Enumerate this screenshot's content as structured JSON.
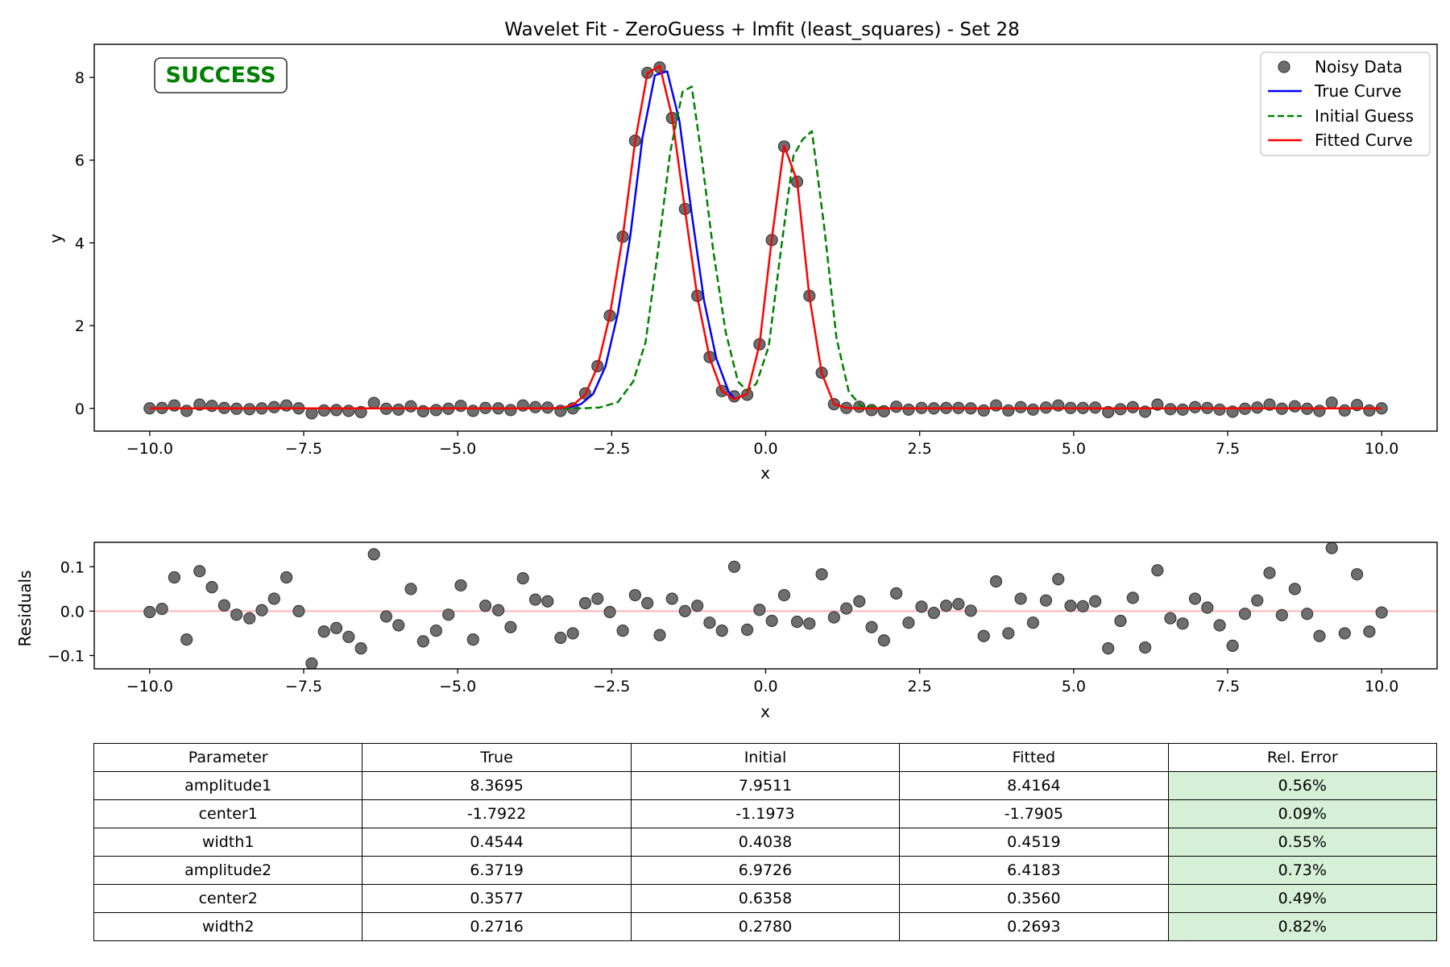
{
  "chart_data": [
    {
      "type": "line",
      "title": "Wavelet Fit - ZeroGuess + lmfit (least_squares) - Set 28",
      "xlabel": "x",
      "ylabel": "y",
      "xlim": [
        -10.9,
        10.9
      ],
      "ylim": [
        -0.55,
        8.8
      ],
      "xticks": [
        -10.0,
        -7.5,
        -5.0,
        -2.5,
        0.0,
        2.5,
        5.0,
        7.5,
        10.0
      ],
      "yticks": [
        0,
        2,
        4,
        6,
        8
      ],
      "grid": false,
      "legend_position": "top-right",
      "status_badge": "SUCCESS",
      "series": [
        {
          "name": "Noisy Data",
          "style": "markers",
          "color": "#555555",
          "x": [
            -10.0,
            -9.8,
            -9.6,
            -9.4,
            -9.19,
            -8.99,
            -8.79,
            -8.59,
            -8.38,
            -8.18,
            -7.98,
            -7.78,
            -7.58,
            -7.37,
            -7.17,
            -6.97,
            -6.77,
            -6.57,
            -6.36,
            -6.16,
            -5.96,
            -5.76,
            -5.56,
            -5.35,
            -5.15,
            -4.95,
            -4.75,
            -4.55,
            -4.34,
            -4.14,
            -3.94,
            -3.74,
            -3.54,
            -3.33,
            -3.13,
            -2.93,
            -2.73,
            -2.53,
            -2.32,
            -2.12,
            -1.92,
            -1.72,
            -1.52,
            -1.31,
            -1.11,
            -0.91,
            -0.71,
            -0.51,
            -0.3,
            -0.1,
            0.1,
            0.3,
            0.51,
            0.71,
            0.91,
            1.11,
            1.31,
            1.52,
            1.72,
            1.92,
            2.12,
            2.32,
            2.53,
            2.73,
            2.93,
            3.13,
            3.33,
            3.54,
            3.74,
            3.94,
            4.14,
            4.34,
            4.55,
            4.75,
            4.95,
            5.15,
            5.35,
            5.56,
            5.76,
            5.96,
            6.16,
            6.36,
            6.57,
            6.77,
            6.97,
            7.17,
            7.37,
            7.58,
            7.78,
            7.98,
            8.18,
            8.38,
            8.59,
            8.79,
            8.99,
            9.19,
            9.4,
            9.6,
            9.8,
            10.0
          ],
          "y": [
            0.0,
            0.01,
            0.07,
            -0.06,
            0.09,
            0.06,
            0.01,
            -0.01,
            -0.02,
            0.0,
            0.03,
            0.07,
            0.0,
            -0.12,
            -0.05,
            -0.04,
            -0.06,
            -0.09,
            0.13,
            -0.01,
            -0.03,
            0.05,
            -0.07,
            -0.04,
            -0.01,
            0.06,
            -0.06,
            0.01,
            0.0,
            -0.04,
            0.07,
            0.03,
            0.02,
            -0.06,
            0.0,
            0.36,
            1.02,
            2.24,
            4.15,
            6.47,
            8.11,
            8.24,
            7.02,
            4.82,
            2.72,
            1.24,
            0.42,
            0.29,
            0.33,
            1.55,
            4.07,
            6.33,
            5.48,
            2.72,
            0.86,
            0.1,
            0.01,
            0.04,
            -0.04,
            -0.07,
            0.04,
            -0.03,
            0.01,
            0.0,
            0.01,
            0.01,
            0.0,
            -0.05,
            0.07,
            -0.05,
            0.03,
            -0.03,
            0.02,
            0.07,
            0.01,
            0.01,
            0.02,
            -0.09,
            -0.02,
            0.03,
            -0.08,
            0.09,
            -0.02,
            -0.03,
            0.03,
            0.01,
            -0.03,
            -0.08,
            -0.01,
            0.02,
            0.09,
            -0.01,
            0.05,
            -0.01,
            -0.06,
            0.14,
            -0.05,
            0.08,
            -0.05,
            0.0
          ]
        },
        {
          "name": "True Curve",
          "style": "solid",
          "color": "#0000ff",
          "x": [
            -3.4,
            -3.2,
            -3.0,
            -2.8,
            -2.6,
            -2.4,
            -2.2,
            -2.0,
            -1.8,
            -1.6,
            -1.4,
            -1.2,
            -1.0,
            -0.8,
            -0.6,
            -0.5
          ],
          "y": [
            0.0,
            0.02,
            0.1,
            0.35,
            1.02,
            2.3,
            4.15,
            6.55,
            8.05,
            8.15,
            6.95,
            4.7,
            2.6,
            1.2,
            0.4,
            0.22
          ]
        },
        {
          "name": "Initial Guess",
          "style": "dashed",
          "color": "#008000",
          "x": [
            -10.0,
            -3.0,
            -2.7,
            -2.4,
            -2.15,
            -1.95,
            -1.75,
            -1.55,
            -1.35,
            -1.2,
            -1.05,
            -0.85,
            -0.65,
            -0.45,
            -0.3,
            -0.15,
            0.05,
            0.25,
            0.45,
            0.6,
            0.75,
            0.95,
            1.15,
            1.35,
            1.55,
            2.0,
            10.0
          ],
          "y": [
            0.0,
            0.0,
            0.02,
            0.15,
            0.65,
            1.6,
            3.8,
            6.2,
            7.65,
            7.78,
            6.2,
            3.8,
            1.85,
            0.65,
            0.42,
            0.6,
            1.5,
            3.85,
            6.1,
            6.5,
            6.7,
            4.4,
            1.7,
            0.4,
            0.06,
            0.0,
            0.0
          ]
        },
        {
          "name": "Fitted Curve",
          "style": "solid",
          "color": "#ff0000",
          "x": [
            -10.0,
            -3.54,
            -3.33,
            -3.13,
            -2.93,
            -2.73,
            -2.53,
            -2.32,
            -2.12,
            -1.92,
            -1.72,
            -1.52,
            -1.31,
            -1.11,
            -0.91,
            -0.71,
            -0.51,
            -0.3,
            -0.1,
            0.1,
            0.3,
            0.51,
            0.71,
            0.91,
            1.11,
            1.31,
            1.52,
            10.0
          ],
          "y": [
            0.0,
            0.0,
            0.01,
            0.08,
            0.33,
            1.0,
            2.25,
            4.15,
            6.45,
            8.1,
            8.28,
            7.05,
            4.8,
            2.7,
            1.22,
            0.42,
            0.22,
            0.35,
            1.55,
            4.1,
            6.35,
            5.5,
            2.7,
            0.85,
            0.1,
            0.01,
            0.0,
            0.0
          ]
        }
      ]
    },
    {
      "type": "scatter",
      "title": "",
      "xlabel": "x",
      "ylabel": "Residuals",
      "xlim": [
        -10.9,
        10.9
      ],
      "ylim": [
        -0.13,
        0.155
      ],
      "xticks": [
        -10.0,
        -7.5,
        -5.0,
        -2.5,
        0.0,
        2.5,
        5.0,
        7.5,
        10.0
      ],
      "yticks": [
        0.1,
        0.0,
        -0.1
      ],
      "ytick_labels": [
        "0.1",
        "0.0",
        "−0.1"
      ],
      "zero_line_color": "#ffb3b3",
      "grid": false,
      "series": [
        {
          "style": "markers",
          "color": "#555555",
          "x": [
            -10.0,
            -9.8,
            -9.6,
            -9.4,
            -9.19,
            -8.99,
            -8.79,
            -8.59,
            -8.38,
            -8.18,
            -7.98,
            -7.78,
            -7.58,
            -7.37,
            -7.17,
            -6.97,
            -6.77,
            -6.57,
            -6.36,
            -6.16,
            -5.96,
            -5.76,
            -5.56,
            -5.35,
            -5.15,
            -4.95,
            -4.75,
            -4.55,
            -4.34,
            -4.14,
            -3.94,
            -3.74,
            -3.54,
            -3.33,
            -3.13,
            -2.93,
            -2.73,
            -2.53,
            -2.32,
            -2.12,
            -1.92,
            -1.72,
            -1.52,
            -1.31,
            -1.11,
            -0.91,
            -0.71,
            -0.51,
            -0.3,
            -0.1,
            0.1,
            0.3,
            0.51,
            0.71,
            0.91,
            1.11,
            1.31,
            1.52,
            1.72,
            1.92,
            2.12,
            2.32,
            2.53,
            2.73,
            2.93,
            3.13,
            3.33,
            3.54,
            3.74,
            3.94,
            4.14,
            4.34,
            4.55,
            4.75,
            4.95,
            5.15,
            5.35,
            5.56,
            5.76,
            5.96,
            6.16,
            6.36,
            6.57,
            6.77,
            6.97,
            7.17,
            7.37,
            7.58,
            7.78,
            7.98,
            8.18,
            8.38,
            8.59,
            8.79,
            8.99,
            9.19,
            9.4,
            9.6,
            9.8,
            10.0
          ],
          "y": [
            -0.002,
            0.005,
            0.076,
            -0.064,
            0.09,
            0.054,
            0.013,
            -0.008,
            -0.016,
            0.002,
            0.028,
            0.076,
            0.0,
            -0.118,
            -0.046,
            -0.038,
            -0.058,
            -0.084,
            0.128,
            -0.012,
            -0.032,
            0.05,
            -0.068,
            -0.044,
            -0.008,
            0.058,
            -0.064,
            0.012,
            0.002,
            -0.036,
            0.074,
            0.026,
            0.022,
            -0.06,
            -0.05,
            0.018,
            0.028,
            -0.002,
            -0.044,
            0.036,
            0.018,
            -0.054,
            0.028,
            0.0,
            0.012,
            -0.026,
            -0.044,
            0.1,
            -0.042,
            0.003,
            -0.022,
            0.036,
            -0.024,
            -0.028,
            0.083,
            -0.014,
            0.006,
            0.022,
            -0.036,
            -0.066,
            0.04,
            -0.026,
            0.01,
            -0.004,
            0.012,
            0.016,
            0.001,
            -0.056,
            0.067,
            -0.05,
            0.028,
            -0.026,
            0.024,
            0.072,
            0.012,
            0.011,
            0.022,
            -0.084,
            -0.022,
            0.03,
            -0.082,
            0.092,
            -0.016,
            -0.028,
            0.028,
            0.008,
            -0.032,
            -0.078,
            -0.006,
            0.024,
            0.086,
            -0.009,
            0.05,
            -0.006,
            -0.056,
            0.142,
            -0.05,
            0.083,
            -0.046,
            -0.003
          ]
        }
      ]
    }
  ],
  "table": {
    "headers": [
      "Parameter",
      "True",
      "Initial",
      "Fitted",
      "Rel. Error"
    ],
    "rows": [
      [
        "amplitude1",
        "8.3695",
        "7.9511",
        "8.4164",
        "0.56%"
      ],
      [
        "center1",
        "-1.7922",
        "-1.1973",
        "-1.7905",
        "0.09%"
      ],
      [
        "width1",
        "0.4544",
        "0.4038",
        "0.4519",
        "0.55%"
      ],
      [
        "amplitude2",
        "6.3719",
        "6.9726",
        "6.4183",
        "0.73%"
      ],
      [
        "center2",
        "0.3577",
        "0.6358",
        "0.3560",
        "0.49%"
      ],
      [
        "width2",
        "0.2716",
        "0.2780",
        "0.2693",
        "0.82%"
      ]
    ],
    "error_cell_color": "#d6f0d8"
  }
}
